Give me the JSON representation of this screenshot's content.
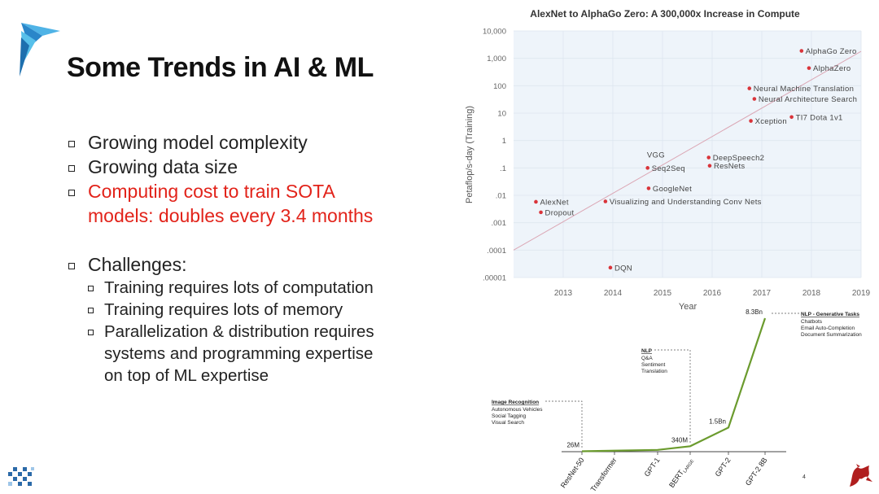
{
  "slide": {
    "title": "Some Trends in AI & ML",
    "page_number": "4",
    "bullets": [
      {
        "text": "Growing model complexity",
        "highlight": false
      },
      {
        "text": "Growing data size",
        "highlight": false
      },
      {
        "text": "Computing cost to train SOTA models: doubles every 3.4 months",
        "highlight": true,
        "lines": [
          "Computing cost to train SOTA",
          "models: doubles every 3.4 months"
        ]
      }
    ],
    "challenges": {
      "label": "Challenges:",
      "items": [
        {
          "lines": [
            "Training requires lots of computation"
          ]
        },
        {
          "lines": [
            "Training requires lots of memory"
          ]
        },
        {
          "lines": [
            "Parallelization & distribution requires",
            "systems and programming expertise",
            "on top of ML expertise"
          ]
        }
      ]
    },
    "colors": {
      "highlight": "#e2231a",
      "point": "#d9343a",
      "trend": "#dba6b4",
      "growth_line": "#6b9b2e"
    }
  },
  "chart_data": [
    {
      "type": "scatter",
      "title": "AlexNet to AlphaGo Zero: A 300,000x Increase in Compute",
      "xlabel": "Year",
      "ylabel": "Petaflop/s-day (Training)",
      "log_y": true,
      "xlim": [
        2012,
        2019
      ],
      "ylim": [
        1e-05,
        10000
      ],
      "grid": true,
      "x_ticks": [
        "2013",
        "2014",
        "2015",
        "2016",
        "2017",
        "2018",
        "2019"
      ],
      "y_ticks": [
        ".00001",
        ".0001",
        ".001",
        ".01",
        ".1",
        "1",
        "10",
        "100",
        "1,000",
        "10,000"
      ],
      "points": [
        {
          "label": "AlexNet",
          "x": 2012.45,
          "y": 0.0058
        },
        {
          "label": "Dropout",
          "x": 2012.55,
          "y": 0.0024
        },
        {
          "label": "Visualizing and Understanding Conv Nets",
          "x": 2013.85,
          "y": 0.006
        },
        {
          "label": "DQN",
          "x": 2013.95,
          "y": 2.3e-05
        },
        {
          "label": "Seq2Seq",
          "x": 2014.7,
          "y": 0.1
        },
        {
          "label": "VGG",
          "x": 2014.72,
          "y": 0.1
        },
        {
          "label": "GoogleNet",
          "x": 2014.72,
          "y": 0.018
        },
        {
          "label": "DeepSpeech2",
          "x": 2015.93,
          "y": 0.24
        },
        {
          "label": "ResNets",
          "x": 2015.95,
          "y": 0.12
        },
        {
          "label": "Neural Machine Translation",
          "x": 2016.75,
          "y": 80
        },
        {
          "label": "Neural Architecture Search",
          "x": 2016.85,
          "y": 33
        },
        {
          "label": "Xception",
          "x": 2016.78,
          "y": 5.2
        },
        {
          "label": "TI7 Dota 1v1",
          "x": 2017.6,
          "y": 7.2
        },
        {
          "label": "AlphaZero",
          "x": 2017.95,
          "y": 440
        },
        {
          "label": "AlphaGo Zero",
          "x": 2017.8,
          "y": 1870
        }
      ],
      "trend": {
        "from": [
          2012,
          0.0001
        ],
        "to": [
          2019,
          1800
        ]
      }
    },
    {
      "type": "line",
      "categories": [
        "ResNet-50",
        "Transformer",
        "GPT-1",
        "BERT",
        "GPT-2",
        "GPT-2 8B"
      ],
      "category_subscript": {
        "BERT": "LARGE"
      },
      "values": [
        0.026,
        0.065,
        0.11,
        0.34,
        1.5,
        8.3
      ],
      "point_labels": [
        "26M",
        "",
        "",
        "340M",
        "1.5Bn",
        "8.3Bn"
      ],
      "annotations": [
        {
          "title": "Image Recognition",
          "lines": [
            "Autonomous Vehicles",
            "Social Tagging",
            "Visual Search"
          ],
          "target": "ResNet-50"
        },
        {
          "title": "NLP",
          "lines": [
            "Q&A",
            "Sentiment",
            "Translation"
          ],
          "target": "BERT"
        },
        {
          "title": "NLP - Generative Tasks",
          "lines": [
            "Chatbots",
            "Email Auto-Completion",
            "Document Summarization"
          ],
          "target": "GPT-2 8B"
        }
      ]
    }
  ]
}
